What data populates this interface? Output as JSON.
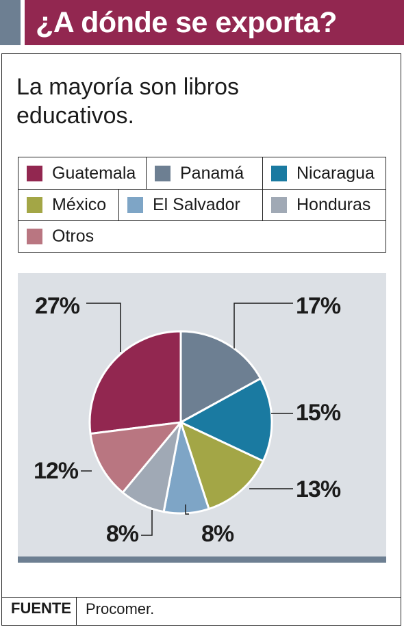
{
  "header": {
    "title": "¿A dónde se exporta?"
  },
  "subtitle": "La mayoría son libros educativos.",
  "colors": {
    "header": "#922750",
    "accent": "#6d7f92",
    "panel": "#dce0e5"
  },
  "chart_data": {
    "type": "pie",
    "legend_position": "top",
    "slices": [
      {
        "name": "Guatemala",
        "value": 27,
        "label": "27%",
        "color": "#922750"
      },
      {
        "name": "Panamá",
        "value": 17,
        "label": "17%",
        "color": "#6d7f92"
      },
      {
        "name": "Nicaragua",
        "value": 15,
        "label": "15%",
        "color": "#1a7aa1"
      },
      {
        "name": "México",
        "value": 13,
        "label": "13%",
        "color": "#a3a646"
      },
      {
        "name": "El Salvador",
        "value": 8,
        "label": "8%",
        "color": "#7ea5c6"
      },
      {
        "name": "Honduras",
        "value": 8,
        "label": "8%",
        "color": "#a0a9b5"
      },
      {
        "name": "Otros",
        "value": 12,
        "label": "12%",
        "color": "#b97681"
      }
    ]
  },
  "footer": {
    "source_label": "FUENTE",
    "source_value": "Procomer."
  }
}
